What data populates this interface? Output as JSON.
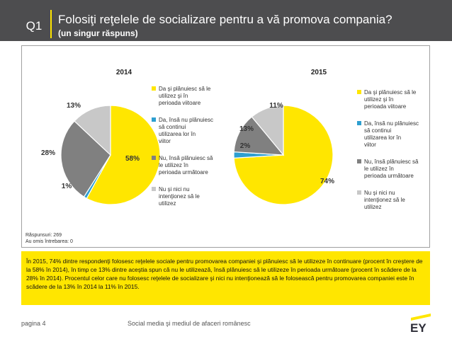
{
  "header": {
    "badge": "Q1",
    "title": "Folosiţi  reţelele de socializare pentru a vă promova compania?",
    "subtitle": "(un singur răspuns)"
  },
  "colors": {
    "header_bg": "#4d4d4f",
    "accent": "#ffe600",
    "slice_1": "#ffe600",
    "slice_2": "#2e9fd0",
    "slice_3": "#808080",
    "slice_4": "#c8c8c8"
  },
  "chart_data": [
    {
      "type": "pie",
      "title": "2014",
      "labels": [
        "Da şi plănuiesc să le utilizez şi în perioada viitoare",
        "Da, însă nu plănuiesc să continui utilizarea lor în viitor",
        "Nu, însă plănuiesc să le utilizez în perioada următoare",
        "Nu şi nici nu intenţionez să le utilizez"
      ],
      "values": [
        58,
        1,
        28,
        13
      ],
      "value_labels": [
        "58%",
        "1%",
        "28%",
        "13%"
      ],
      "legend_placement": "right"
    },
    {
      "type": "pie",
      "title": "2015",
      "labels": [
        "Da şi plănuiesc să le utilizez şi în perioada viitoare",
        "Da, însă nu plănuiesc să continui utilizarea lor în viitor",
        "Nu, însă plănuiesc să le utilizez în perioada următoare",
        "Nu şi nici nu intenţionez să le utilizez"
      ],
      "values": [
        74,
        2,
        13,
        11
      ],
      "value_labels": [
        "74%",
        "2%",
        "13%",
        "11%"
      ],
      "legend_placement": "right"
    }
  ],
  "notes": {
    "responses": "Răspunsuri: 269",
    "skipped": "Au omis întrebarea: 0"
  },
  "summary": "În 2015, 74% dintre respondenţi folosesc reţelele sociale pentru promovarea companiei şi plănuiesc să le utilizeze în continuare (procent în creştere de la 58% în 2014), în timp ce 13% dintre aceştia spun că nu le utilizează, însă plănuiesc să le utilizeze în perioada următoare (procent în scădere de la 28% în 2014). Procentul celor care nu folosesc reţelele de socializare şi nici nu intenţionează să le folosească pentru promovarea companiei este în scădere de la 13% în 2014 la 11% în 2015.",
  "footer": {
    "page": "pagina 4",
    "center": "Social media şi mediul de afaceri românesc",
    "logo": "EY"
  }
}
